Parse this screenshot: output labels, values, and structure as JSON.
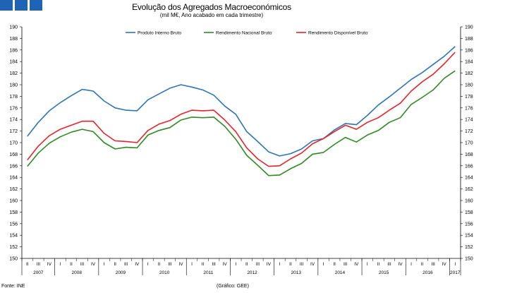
{
  "header": {
    "title": "Evolução dos Agregados Macroeconómicos",
    "subtitle": "(mil M€, Ano acabado em cada trimestre)"
  },
  "footer": {
    "source": "Fonte: INE",
    "credit": "(Gráfico: GEE)"
  },
  "colors": {
    "pib": "#2e75b6",
    "rnb": "#2e8b22",
    "rdb": "#e8222a"
  },
  "chart_data": {
    "type": "line",
    "title": "Evolução dos Agregados Macroeconómicos",
    "subtitle": "(mil M€, Ano acabado em cada trimestre)",
    "ylim": [
      150,
      190
    ],
    "yticks": [
      "150",
      "152",
      "154",
      "156",
      "158",
      "160",
      "162",
      "164",
      "166",
      "168",
      "170",
      "172",
      "174",
      "176",
      "178",
      "180",
      "182",
      "184",
      "186",
      "188",
      "190"
    ],
    "quarters": [
      "II",
      "III",
      "IV",
      "I",
      "II",
      "III",
      "IV",
      "I",
      "II",
      "III",
      "IV",
      "I",
      "II",
      "III",
      "IV",
      "I",
      "II",
      "III",
      "IV",
      "I",
      "II",
      "III",
      "IV",
      "I",
      "II",
      "III",
      "IV",
      "I",
      "II",
      "III",
      "IV",
      "I",
      "II",
      "III",
      "IV",
      "I",
      "II",
      "III",
      "IV",
      "I"
    ],
    "years": [
      "2007",
      "2008",
      "2009",
      "2010",
      "2011",
      "2012",
      "2013",
      "2014",
      "2015",
      "2016",
      "2017"
    ],
    "legend_position": "top",
    "series": [
      {
        "name": "Produto Interno Bruto",
        "values": [
          171.1,
          173.5,
          175.5,
          176.9,
          178.1,
          179.2,
          178.9,
          177.2,
          176.0,
          175.6,
          175.5,
          177.4,
          178.4,
          179.4,
          180.0,
          179.6,
          179.1,
          178.2,
          176.3,
          174.9,
          171.9,
          170.2,
          168.4,
          167.7,
          168.1,
          168.9,
          170.3,
          170.7,
          172.2,
          173.3,
          173.1,
          174.7,
          176.5,
          177.9,
          179.4,
          180.9,
          182.1,
          183.5,
          184.9,
          186.6
        ]
      },
      {
        "name": "Rendimento Nacional Bruto",
        "values": [
          165.9,
          168.2,
          169.9,
          171.0,
          171.8,
          172.3,
          171.9,
          170.0,
          168.9,
          169.2,
          169.1,
          171.3,
          172.1,
          172.6,
          173.9,
          174.4,
          174.3,
          174.4,
          172.8,
          170.6,
          167.8,
          166.1,
          164.3,
          164.4,
          165.5,
          166.4,
          168.0,
          168.3,
          169.7,
          170.9,
          170.1,
          171.3,
          172.1,
          173.5,
          174.3,
          176.6,
          177.8,
          179.1,
          181.1,
          182.4
        ]
      },
      {
        "name": "Rendimento Disponível Bruto",
        "values": [
          167.0,
          169.4,
          171.2,
          172.3,
          173.0,
          173.7,
          173.7,
          171.6,
          170.3,
          170.2,
          170.0,
          172.1,
          173.2,
          173.8,
          174.9,
          175.6,
          175.5,
          175.6,
          173.9,
          171.9,
          169.1,
          167.2,
          165.9,
          166.0,
          167.2,
          168.2,
          169.8,
          170.7,
          171.9,
          173.0,
          172.3,
          173.5,
          174.3,
          175.6,
          176.8,
          178.9,
          180.5,
          181.8,
          183.6,
          185.6
        ]
      }
    ]
  }
}
